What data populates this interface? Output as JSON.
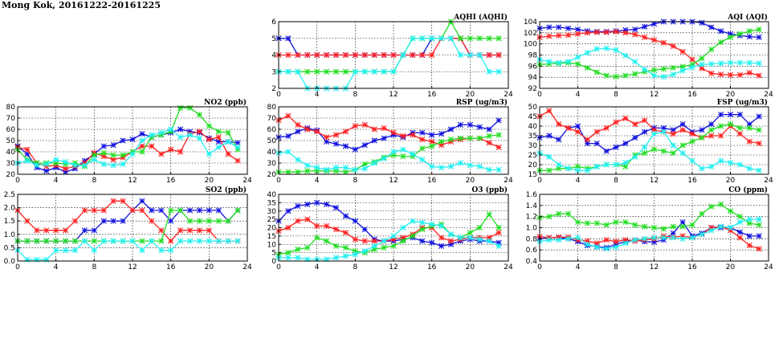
{
  "title": "Mong Kok, 20161222-20161225",
  "colors": {
    "red": "#ff2020",
    "blue": "#1010dd",
    "green": "#22dd22",
    "cyan": "#22f0f0"
  },
  "chart_data": [
    {
      "type": "line",
      "title": "AQHI (AQHI)",
      "xlim": [
        0,
        24
      ],
      "ylim": [
        2,
        6
      ],
      "xticks": [
        0,
        4,
        8,
        12,
        16,
        20,
        24
      ],
      "yticks": [
        2,
        3,
        4,
        5,
        6
      ],
      "grid": true,
      "series": [
        {
          "color": "blue",
          "values": [
            5,
            5,
            4,
            4,
            4,
            4,
            4,
            4,
            4,
            4,
            4,
            4,
            4,
            4,
            4,
            4,
            5,
            5,
            5,
            5,
            4,
            4,
            4,
            4
          ]
        },
        {
          "color": "red",
          "values": [
            4,
            4,
            4,
            4,
            4,
            4,
            4,
            4,
            4,
            4,
            4,
            4,
            4,
            4,
            4,
            4,
            4,
            5,
            5,
            5,
            4,
            4,
            4,
            4
          ]
        },
        {
          "color": "green",
          "values": [
            3,
            3,
            3,
            3,
            3,
            3,
            3,
            3,
            3,
            3,
            3,
            3,
            3,
            4,
            5,
            5,
            5,
            5,
            6,
            5,
            5,
            5,
            5,
            5
          ]
        },
        {
          "color": "cyan",
          "values": [
            3,
            3,
            3,
            2,
            2,
            2,
            2,
            2,
            3,
            3,
            3,
            3,
            3,
            4,
            5,
            5,
            5,
            5,
            5,
            4,
            4,
            4,
            3,
            3
          ]
        }
      ]
    },
    {
      "type": "line",
      "title": "AQI (AQI)",
      "xlim": [
        0,
        24
      ],
      "ylim": [
        92,
        104
      ],
      "xticks": [
        0,
        4,
        8,
        12,
        16,
        20,
        24
      ],
      "yticks": [
        92,
        94,
        96,
        98,
        100,
        102,
        104
      ],
      "grid": true,
      "series": [
        {
          "color": "blue",
          "values": [
            102.8,
            103,
            103,
            102.8,
            102.6,
            102.3,
            102.2,
            102.2,
            102.3,
            102.5,
            102.6,
            103.1,
            103.6,
            104.1,
            104.4,
            104.3,
            104.2,
            103.8,
            103,
            102.3,
            101.8,
            101.5,
            101.3,
            101.2
          ]
        },
        {
          "color": "red",
          "values": [
            101.2,
            101.4,
            101.5,
            101.6,
            101.8,
            102,
            102.1,
            102.1,
            102.2,
            102,
            101.7,
            101.2,
            100.7,
            100.2,
            99.6,
            98.6,
            97.2,
            95.6,
            94.7,
            94.5,
            94.4,
            94.4,
            94.8,
            94.3
          ]
        },
        {
          "color": "green",
          "values": [
            96.3,
            96.4,
            96.5,
            96.6,
            96.4,
            95.7,
            94.9,
            94.3,
            94.1,
            94.3,
            94.6,
            95,
            95.3,
            95.5,
            95.7,
            95.9,
            96.3,
            97.4,
            99,
            100.3,
            101.2,
            101.8,
            102.3,
            102.6
          ]
        },
        {
          "color": "cyan",
          "values": [
            97.2,
            96.8,
            96.6,
            96.8,
            97.6,
            98.4,
            99.1,
            99.2,
            98.9,
            97.9,
            96.8,
            95.4,
            94.3,
            94.1,
            94.5,
            95.2,
            95.8,
            96.3,
            96.4,
            96.5,
            96.6,
            96.6,
            96.6,
            96.5
          ]
        }
      ]
    },
    {
      "type": "line",
      "title": "NO2 (ppb)",
      "xlim": [
        0,
        24
      ],
      "ylim": [
        20,
        80
      ],
      "xticks": [
        0,
        4,
        8,
        12,
        16,
        20,
        24
      ],
      "yticks": [
        20,
        30,
        40,
        50,
        60,
        70,
        80
      ],
      "grid": true,
      "series": [
        {
          "color": "blue",
          "values": [
            45,
            38,
            26,
            23,
            26,
            22,
            25,
            32,
            38,
            45,
            46,
            50,
            51,
            56,
            53,
            55,
            57,
            60,
            58,
            57,
            52,
            49,
            49,
            48
          ]
        },
        {
          "color": "red",
          "values": [
            44,
            42,
            30,
            27,
            28,
            25,
            27,
            30,
            39,
            36,
            33,
            35,
            40,
            45,
            45,
            38,
            42,
            40,
            56,
            58,
            51,
            53,
            38,
            32
          ]
        },
        {
          "color": "green",
          "values": [
            42,
            33,
            30,
            30,
            30,
            29,
            30,
            27,
            37,
            39,
            37,
            37,
            40,
            40,
            53,
            55,
            58,
            79,
            79,
            73,
            63,
            58,
            57,
            42
          ]
        },
        {
          "color": "cyan",
          "values": [
            30,
            32,
            28,
            29,
            33,
            31,
            28,
            28,
            33,
            29,
            28,
            29,
            38,
            50,
            55,
            57,
            60,
            53,
            55,
            52,
            38,
            44,
            49,
            44
          ]
        }
      ]
    },
    {
      "type": "line",
      "title": "RSP (ug/m3)",
      "xlim": [
        0,
        24
      ],
      "ylim": [
        20,
        80
      ],
      "xticks": [
        0,
        4,
        8,
        12,
        16,
        20,
        24
      ],
      "yticks": [
        20,
        30,
        40,
        50,
        60,
        70,
        80
      ],
      "grid": true,
      "series": [
        {
          "color": "blue",
          "values": [
            53,
            54,
            58,
            61,
            59,
            49,
            47,
            45,
            42,
            46,
            50,
            52,
            55,
            53,
            57,
            57,
            55,
            56,
            60,
            64,
            64,
            62,
            60,
            68
          ]
        },
        {
          "color": "red",
          "values": [
            68,
            72,
            64,
            60,
            58,
            53,
            55,
            58,
            63,
            64,
            60,
            61,
            57,
            54,
            55,
            51,
            49,
            46,
            49,
            51,
            52,
            52,
            48,
            44
          ]
        },
        {
          "color": "green",
          "values": [
            22,
            22,
            22,
            23,
            23,
            23,
            23,
            22,
            24,
            29,
            31,
            35,
            37,
            36,
            36,
            43,
            45,
            49,
            51,
            52,
            52,
            52,
            54,
            55
          ]
        },
        {
          "color": "cyan",
          "values": [
            39,
            40,
            33,
            28,
            26,
            24,
            26,
            26,
            24,
            25,
            30,
            34,
            40,
            42,
            38,
            33,
            27,
            26,
            27,
            30,
            28,
            27,
            24,
            24
          ]
        }
      ]
    },
    {
      "type": "line",
      "title": "FSP (ug/m3)",
      "xlim": [
        0,
        24
      ],
      "ylim": [
        15,
        50
      ],
      "xticks": [
        0,
        4,
        8,
        12,
        16,
        20,
        24
      ],
      "yticks": [
        15,
        20,
        25,
        30,
        35,
        40,
        45,
        50
      ],
      "grid": true,
      "series": [
        {
          "color": "blue",
          "values": [
            34,
            35,
            33,
            39,
            40,
            31,
            31,
            27,
            29,
            31,
            34,
            37,
            39,
            39,
            38,
            41,
            37,
            38,
            41,
            46,
            46,
            46,
            41,
            45
          ]
        },
        {
          "color": "red",
          "values": [
            45,
            48,
            41,
            39,
            37,
            33,
            37,
            39,
            42,
            44,
            41,
            43,
            38,
            37,
            36,
            38,
            36,
            34,
            35,
            35,
            40,
            36,
            32,
            31
          ]
        },
        {
          "color": "green",
          "values": [
            17,
            17,
            18,
            18,
            19,
            18,
            19,
            20,
            20,
            19,
            25,
            26,
            28,
            27,
            26,
            30,
            32,
            34,
            38,
            40,
            41,
            39,
            39,
            38
          ]
        },
        {
          "color": "cyan",
          "values": [
            26,
            24,
            20,
            18,
            17,
            17,
            19,
            20,
            20,
            21,
            24,
            29,
            36,
            37,
            30,
            26,
            22,
            18,
            19,
            22,
            21,
            20,
            18,
            17
          ]
        }
      ]
    },
    {
      "type": "line",
      "title": "SO2 (ppb)",
      "xlim": [
        0,
        24
      ],
      "ylim": [
        0,
        2.5
      ],
      "xticks": [
        0,
        4,
        8,
        12,
        16,
        20,
        24
      ],
      "yticks": [
        0.0,
        0.5,
        1.0,
        1.5,
        2.0,
        2.5
      ],
      "grid": true,
      "series": [
        {
          "color": "blue",
          "values": [
            0.75,
            0.75,
            0.75,
            0.75,
            0.75,
            0.75,
            0.75,
            1.15,
            1.15,
            1.5,
            1.5,
            1.5,
            1.9,
            2.25,
            1.9,
            1.9,
            1.5,
            1.9,
            1.9,
            1.9,
            1.9,
            1.9,
            1.5,
            1.9
          ]
        },
        {
          "color": "red",
          "values": [
            1.9,
            1.5,
            1.15,
            1.15,
            1.15,
            1.15,
            1.5,
            1.9,
            1.9,
            1.9,
            2.25,
            2.25,
            1.9,
            1.9,
            1.5,
            1.15,
            0.75,
            1.15,
            1.15,
            1.15,
            1.15,
            0.75,
            0.75,
            0.75
          ]
        },
        {
          "color": "green",
          "values": [
            0.75,
            0.75,
            0.75,
            0.75,
            0.75,
            0.75,
            0.75,
            0.75,
            0.75,
            0.75,
            0.75,
            0.75,
            0.75,
            0.75,
            0.75,
            0.75,
            1.9,
            1.9,
            1.5,
            1.5,
            1.5,
            1.5,
            1.5,
            1.9
          ]
        },
        {
          "color": "cyan",
          "values": [
            0.4,
            0.05,
            0.05,
            0.05,
            0.4,
            0.4,
            0.4,
            0.75,
            0.4,
            0.75,
            0.75,
            0.75,
            0.75,
            0.4,
            0.75,
            0.4,
            0.4,
            0.75,
            0.75,
            0.75,
            0.75,
            0.75,
            0.75,
            0.75
          ]
        }
      ]
    },
    {
      "type": "line",
      "title": "O3 (ppb)",
      "xlim": [
        0,
        24
      ],
      "ylim": [
        0,
        40
      ],
      "xticks": [
        0,
        4,
        8,
        12,
        16,
        20,
        24
      ],
      "yticks": [
        0,
        5,
        10,
        15,
        20,
        25,
        30,
        35,
        40
      ],
      "grid": true,
      "series": [
        {
          "color": "blue",
          "values": [
            24,
            30,
            33,
            34,
            35,
            34,
            32,
            27,
            24,
            19,
            13,
            12,
            12,
            13,
            14,
            12,
            11,
            9,
            10,
            12,
            13,
            12,
            12,
            11
          ]
        },
        {
          "color": "red",
          "values": [
            18,
            20,
            24,
            25,
            21,
            21,
            19,
            17,
            13,
            12,
            12,
            12,
            13,
            14,
            16,
            20,
            20,
            14,
            12,
            13,
            14,
            14,
            14,
            17
          ]
        },
        {
          "color": "green",
          "values": [
            4,
            5,
            7,
            8,
            14,
            12,
            9,
            8,
            6,
            5,
            7,
            8,
            9,
            12,
            15,
            19,
            21,
            22,
            16,
            14,
            17,
            20,
            28,
            20
          ]
        },
        {
          "color": "cyan",
          "values": [
            2,
            2,
            2,
            1,
            1,
            1,
            2,
            3,
            4,
            6,
            9,
            12,
            15,
            20,
            24,
            23,
            22,
            21,
            16,
            14,
            14,
            13,
            12,
            9
          ]
        }
      ]
    },
    {
      "type": "line",
      "title": "CO (ppm)",
      "xlim": [
        0,
        24
      ],
      "ylim": [
        0.4,
        1.6
      ],
      "xticks": [
        0,
        4,
        8,
        12,
        16,
        20,
        24
      ],
      "yticks": [
        0.4,
        0.6,
        0.8,
        1.0,
        1.2,
        1.4,
        1.6
      ],
      "grid": true,
      "series": [
        {
          "color": "blue",
          "values": [
            0.8,
            0.82,
            0.82,
            0.8,
            0.75,
            0.68,
            0.66,
            0.64,
            0.7,
            0.75,
            0.78,
            0.75,
            0.74,
            0.78,
            0.9,
            1.1,
            0.85,
            0.9,
            1.0,
            1.0,
            1.0,
            0.92,
            0.85,
            0.85
          ]
        },
        {
          "color": "red",
          "values": [
            0.84,
            0.82,
            0.83,
            0.83,
            0.78,
            0.76,
            0.72,
            0.78,
            0.75,
            0.78,
            0.76,
            0.78,
            0.8,
            0.85,
            0.83,
            0.85,
            0.82,
            0.88,
            1.0,
            1.02,
            0.95,
            0.82,
            0.68,
            0.62
          ]
        },
        {
          "color": "green",
          "values": [
            1.18,
            1.2,
            1.25,
            1.25,
            1.1,
            1.08,
            1.08,
            1.05,
            1.1,
            1.1,
            1.05,
            1.02,
            1.0,
            0.98,
            1.02,
            1.02,
            1.05,
            1.25,
            1.38,
            1.42,
            1.3,
            1.2,
            1.08,
            1.05
          ]
        },
        {
          "color": "cyan",
          "values": [
            0.75,
            0.78,
            0.78,
            0.8,
            0.82,
            0.7,
            0.65,
            0.62,
            0.65,
            0.72,
            0.78,
            0.8,
            0.82,
            0.82,
            0.82,
            0.8,
            0.82,
            0.88,
            0.95,
            1.02,
            1.0,
            1.1,
            1.15,
            1.15
          ]
        }
      ]
    }
  ]
}
